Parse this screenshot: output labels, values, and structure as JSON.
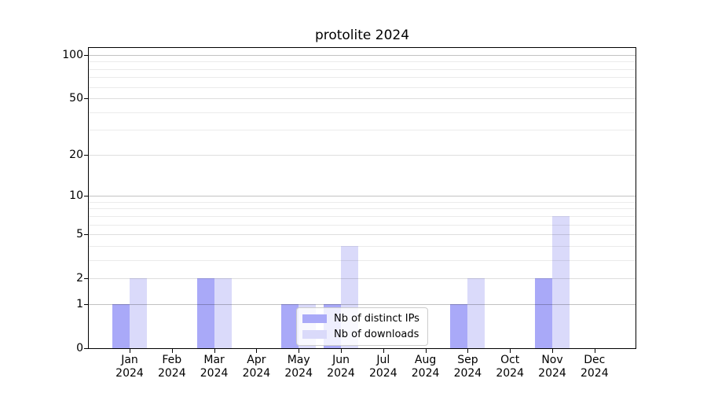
{
  "chart_data": {
    "type": "bar",
    "title": "protolite 2024",
    "x_categories": [
      "Jan",
      "Feb",
      "Mar",
      "Apr",
      "May",
      "Jun",
      "Jul",
      "Aug",
      "Sep",
      "Oct",
      "Nov",
      "Dec"
    ],
    "x_year": "2024",
    "series": [
      {
        "name": "Nb of distinct IPs",
        "color": "#a9a9f8",
        "values": [
          1,
          0,
          2,
          0,
          1,
          1,
          0,
          0,
          1,
          0,
          2,
          0
        ]
      },
      {
        "name": "Nb of downloads",
        "color": "#dadafa",
        "values": [
          2,
          0,
          2,
          0,
          1,
          4,
          0,
          0,
          2,
          0,
          7,
          0
        ]
      }
    ],
    "y_axis": {
      "scale": "log1p",
      "major_ticks": [
        0,
        1,
        2,
        5,
        10,
        20,
        50,
        100
      ],
      "decade_ticks": [
        1,
        10,
        100
      ],
      "minor_ticks": [
        3,
        4,
        6,
        7,
        8,
        9,
        30,
        40,
        60,
        70,
        80,
        90
      ]
    },
    "legend": {
      "position": "lower-center",
      "entries": [
        "Nb of distinct IPs",
        "Nb of downloads"
      ]
    },
    "grid": {
      "decade_color": "rgba(0,0,0,0.24)",
      "major_color": "rgba(0,0,0,0.13)",
      "minor_color": "rgba(0,0,0,0.08)"
    }
  }
}
